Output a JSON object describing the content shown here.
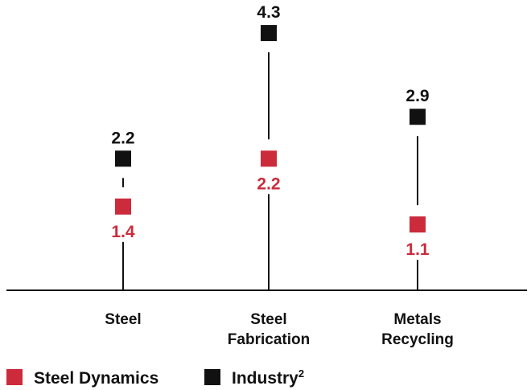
{
  "chart_data": {
    "type": "scatter",
    "title": "",
    "xlabel": "",
    "ylabel": "",
    "categories": [
      [
        "Steel"
      ],
      [
        "Steel",
        "Fabrication"
      ],
      [
        "Metals",
        "Recycling"
      ]
    ],
    "series": [
      {
        "name": "Steel Dynamics",
        "color": "#cc2b3b",
        "values": [
          1.4,
          2.2,
          1.1
        ],
        "labels": [
          "1.4",
          "2.2",
          "1.1"
        ]
      },
      {
        "name": "Industry",
        "superscript": "2",
        "color": "#111111",
        "values": [
          2.2,
          4.3,
          2.9
        ],
        "labels": [
          "2.2",
          "4.3",
          "2.9"
        ]
      }
    ],
    "ylim": [
      0,
      4.5
    ],
    "grid": false,
    "legend_position": "bottom-left"
  }
}
